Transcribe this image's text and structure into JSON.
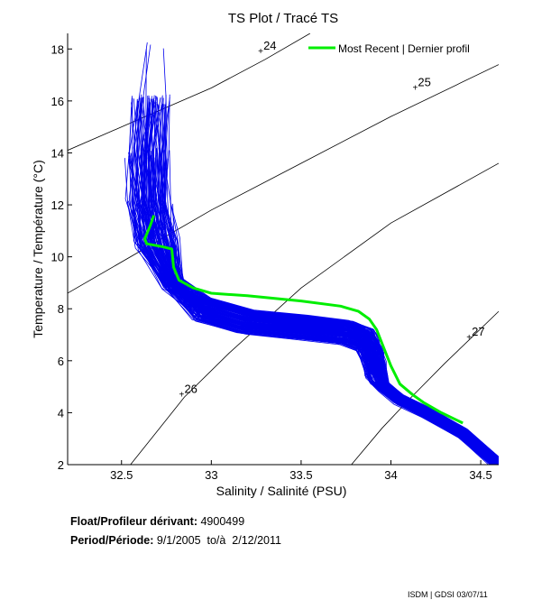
{
  "chart_data": {
    "type": "line",
    "title": "TS Plot / Tracé TS",
    "xlabel": "Salinity / Salinité (PSU)",
    "ylabel": "Temperature / Température (°C)",
    "xlim": [
      32.2,
      34.6
    ],
    "ylim": [
      2,
      18.6
    ],
    "xticks": [
      32.5,
      33,
      33.5,
      34,
      34.5
    ],
    "xtick_labels": [
      "32.5",
      "33",
      "33.5",
      "34",
      "34.5"
    ],
    "yticks": [
      2,
      4,
      6,
      8,
      10,
      12,
      14,
      16,
      18
    ],
    "ytick_labels": [
      "2",
      "4",
      "6",
      "8",
      "10",
      "12",
      "14",
      "16",
      "18"
    ],
    "grid": false,
    "legend": {
      "position": "top-right",
      "entries": [
        {
          "label": "Most Recent | Dernier profil",
          "color": "#00ee00"
        }
      ]
    },
    "colors": {
      "profiles": "#0000ee",
      "most_recent": "#00ee00",
      "isopycnal": "#000000"
    },
    "isopycnals": [
      {
        "label": "24",
        "label_at": [
          33.29,
          17.9
        ],
        "points": [
          [
            32.2,
            14.1
          ],
          [
            32.6,
            15.3
          ],
          [
            33.0,
            16.5
          ],
          [
            33.3,
            17.6
          ],
          [
            33.55,
            18.6
          ]
        ]
      },
      {
        "label": "25",
        "label_at": [
          34.15,
          16.5
        ],
        "points": [
          [
            32.2,
            8.6
          ],
          [
            32.6,
            10.2
          ],
          [
            33.0,
            11.8
          ],
          [
            33.5,
            13.6
          ],
          [
            34.0,
            15.4
          ],
          [
            34.6,
            17.4
          ]
        ]
      },
      {
        "label": "26",
        "label_at": [
          32.85,
          4.7
        ],
        "points": [
          [
            32.55,
            2.0
          ],
          [
            32.7,
            3.3
          ],
          [
            32.85,
            4.6
          ],
          [
            33.1,
            6.3
          ],
          [
            33.5,
            8.8
          ],
          [
            34.0,
            11.3
          ],
          [
            34.6,
            13.6
          ]
        ]
      },
      {
        "label": "27",
        "label_at": [
          34.45,
          6.9
        ],
        "points": [
          [
            33.78,
            2.0
          ],
          [
            33.95,
            3.4
          ],
          [
            34.1,
            4.5
          ],
          [
            34.3,
            5.9
          ],
          [
            34.45,
            6.9
          ],
          [
            34.6,
            7.9
          ]
        ]
      }
    ],
    "most_recent_profile": {
      "S": [
        32.68,
        32.66,
        32.63,
        32.64,
        32.72,
        32.78,
        32.79,
        32.82,
        32.9,
        33.0,
        33.2,
        33.5,
        33.72,
        33.82,
        33.88,
        33.92,
        33.96,
        34.0,
        34.05,
        34.12,
        34.18,
        34.28,
        34.4
      ],
      "T": [
        11.6,
        11.2,
        10.7,
        10.5,
        10.4,
        10.3,
        9.6,
        9.1,
        8.8,
        8.6,
        8.5,
        8.3,
        8.1,
        7.9,
        7.6,
        7.2,
        6.5,
        5.8,
        5.1,
        4.7,
        4.4,
        4.0,
        3.6
      ]
    },
    "profile_envelope": {
      "description": "Approx. 200 historical profiles (blue)",
      "mean_S": [
        32.68,
        32.66,
        32.65,
        32.66,
        32.7,
        32.78,
        32.95,
        33.2,
        33.5,
        33.75,
        33.86,
        33.9,
        33.92,
        33.96,
        34.05,
        34.2,
        34.4,
        34.6
      ],
      "mean_T": [
        18.2,
        16,
        14,
        12,
        10.5,
        9,
        8,
        7.5,
        7.3,
        7.1,
        6.8,
        6.2,
        5.6,
        5.0,
        4.5,
        4.0,
        3.2,
        2.0
      ]
    }
  },
  "info": {
    "float_label": "Float/Profileur dérivant:",
    "float_value": "4900499",
    "period_label": "Period/Période:",
    "period_value": "9/1/2005  to/à  2/12/2011"
  },
  "footer": "ISDM | GDSI  03/07/11"
}
